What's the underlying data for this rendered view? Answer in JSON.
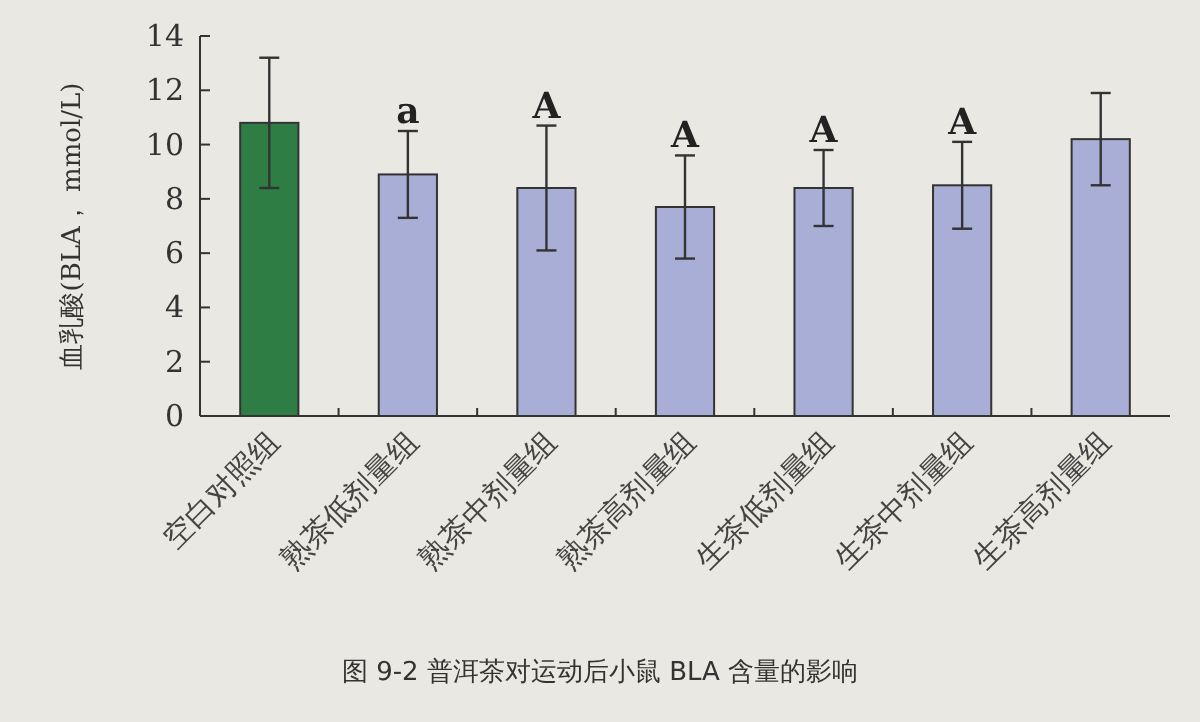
{
  "chart_data": {
    "type": "bar",
    "ylabel": "血乳酸(BLA， mmol/L)",
    "categories": [
      "空白对照组",
      "熟茶低剂量组",
      "熟茶中剂量组",
      "熟茶高剂量组",
      "生茶低剂量组",
      "生茶中剂量组",
      "生茶高剂量组"
    ],
    "values": [
      10.8,
      8.9,
      8.4,
      7.7,
      8.4,
      8.5,
      10.2
    ],
    "errors": [
      2.4,
      1.6,
      2.3,
      1.9,
      1.4,
      1.6,
      1.7
    ],
    "colors": [
      "#2e7d45",
      "#a9aed6",
      "#a9aed6",
      "#a9aed6",
      "#a9aed6",
      "#a9aed6",
      "#a9aed6"
    ],
    "ylim": [
      0,
      14
    ],
    "yticks": [
      0,
      2,
      4,
      6,
      8,
      10,
      12,
      14
    ],
    "grid": false,
    "annotations": [
      {
        "text": "a",
        "x": "熟茶低剂量组",
        "y": 10.5
      },
      {
        "text": "A",
        "x": "熟茶中剂量组",
        "y": 10.7
      },
      {
        "text": "A",
        "x": "熟茶高剂量组",
        "y": 9.6
      },
      {
        "text": "A",
        "x": "生茶低剂量组",
        "y": 9.8
      },
      {
        "text": "A",
        "x": "生茶中剂量组",
        "y": 10.1
      },
      "图 9-2  普洱茶对运动后小鼠 BLA 含量的影响"
    ]
  }
}
